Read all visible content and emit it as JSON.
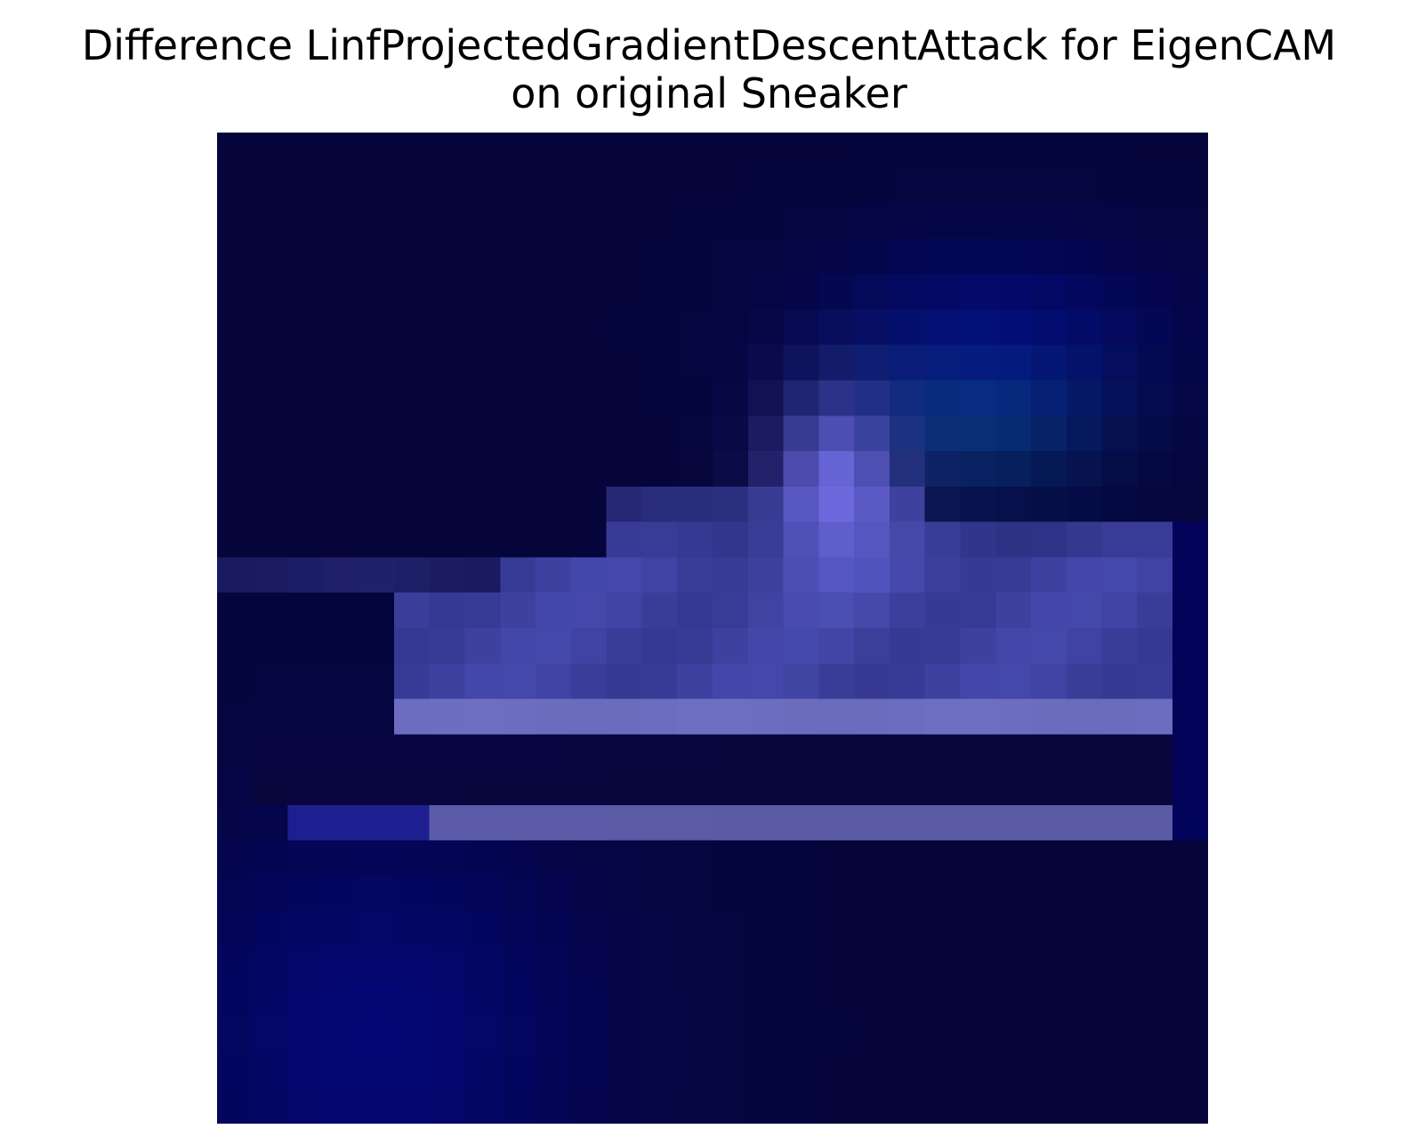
{
  "chart_data": {
    "type": "heatmap",
    "title_lines": [
      "Difference LinfProjectedGradientDescentAttack for EigenCAM",
      "on original Sneaker"
    ],
    "xlabel": "",
    "ylabel": "",
    "axes_visible": false,
    "grid": false,
    "n_rows": 28,
    "n_cols": 28,
    "colors": {
      "background": "#05053d",
      "upper_dark": "#040436",
      "left_edge_blue": "#04067f",
      "shoe_light": "#6c74e6",
      "shoe_highlight": "#8480f4",
      "sole_stripe": "#7a7cc8",
      "teal_glow": "#0b4a8f",
      "outline_dark": "#0a0740"
    },
    "notes": "Difference heatmap pixel colors approximated row by row from the image (28x28 grid)."
  }
}
